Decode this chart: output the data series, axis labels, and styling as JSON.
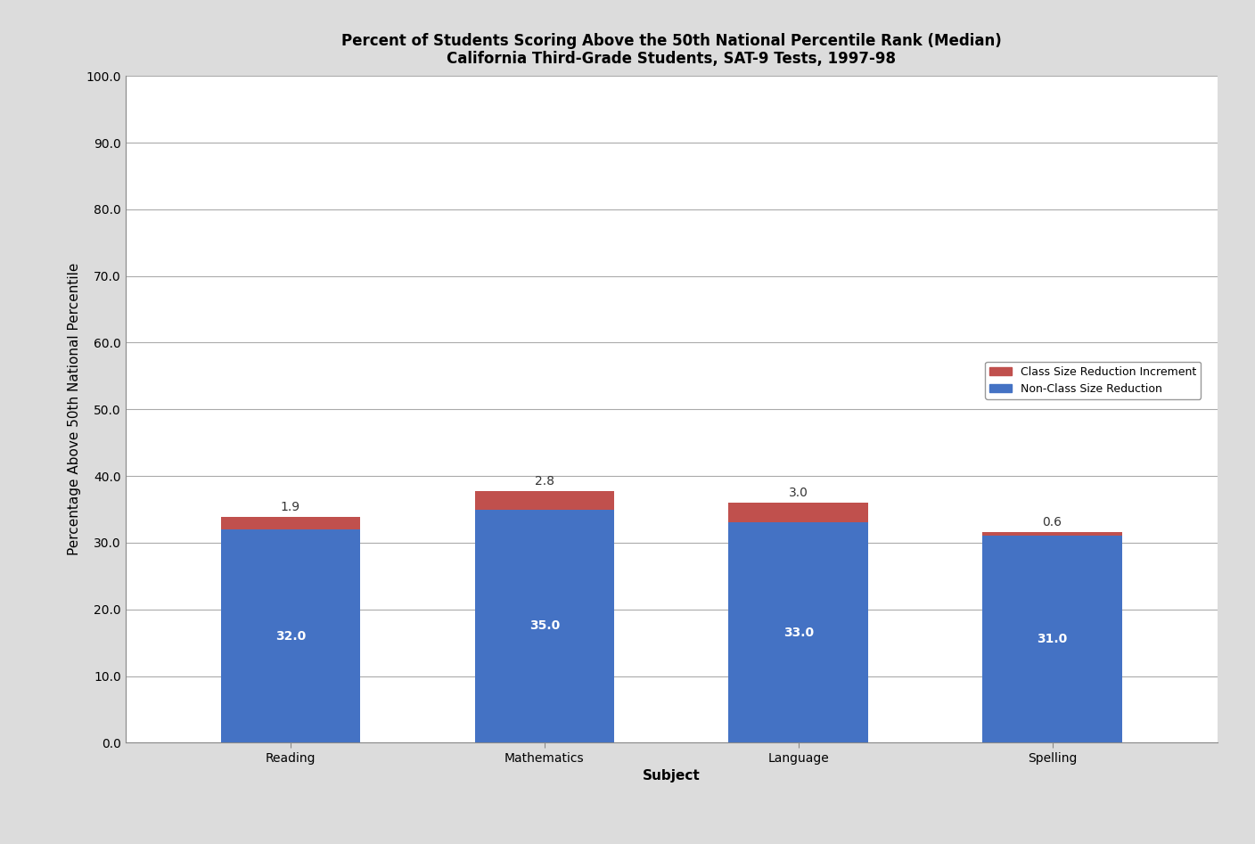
{
  "title_line1": "Percent of Students Scoring Above the 50th National Percentile Rank (Median)",
  "title_line2": "California Third-Grade Students, SAT-9 Tests, 1997-98",
  "categories": [
    "Reading",
    "Mathematics",
    "Language",
    "Spelling"
  ],
  "base_values": [
    32.0,
    35.0,
    33.0,
    31.0
  ],
  "increment_values": [
    1.9,
    2.8,
    3.0,
    0.6
  ],
  "base_color": "#4472C4",
  "increment_color": "#C0504D",
  "xlabel": "Subject",
  "ylabel": "Percentage Above 50th National Percentile",
  "ylim": [
    0,
    100
  ],
  "yticks": [
    0.0,
    10.0,
    20.0,
    30.0,
    40.0,
    50.0,
    60.0,
    70.0,
    80.0,
    90.0,
    100.0
  ],
  "legend_label_1": "Class Size Reduction Increment",
  "legend_label_2": "Non-Class Size Reduction",
  "figure_bg_color": "#DCDCDC",
  "plot_bg_color": "#FFFFFF",
  "grid_color": "#AAAAAA",
  "bar_width": 0.55,
  "title_fontsize": 12,
  "axis_label_fontsize": 11,
  "tick_fontsize": 10,
  "annotation_fontsize": 10,
  "legend_fontsize": 9
}
